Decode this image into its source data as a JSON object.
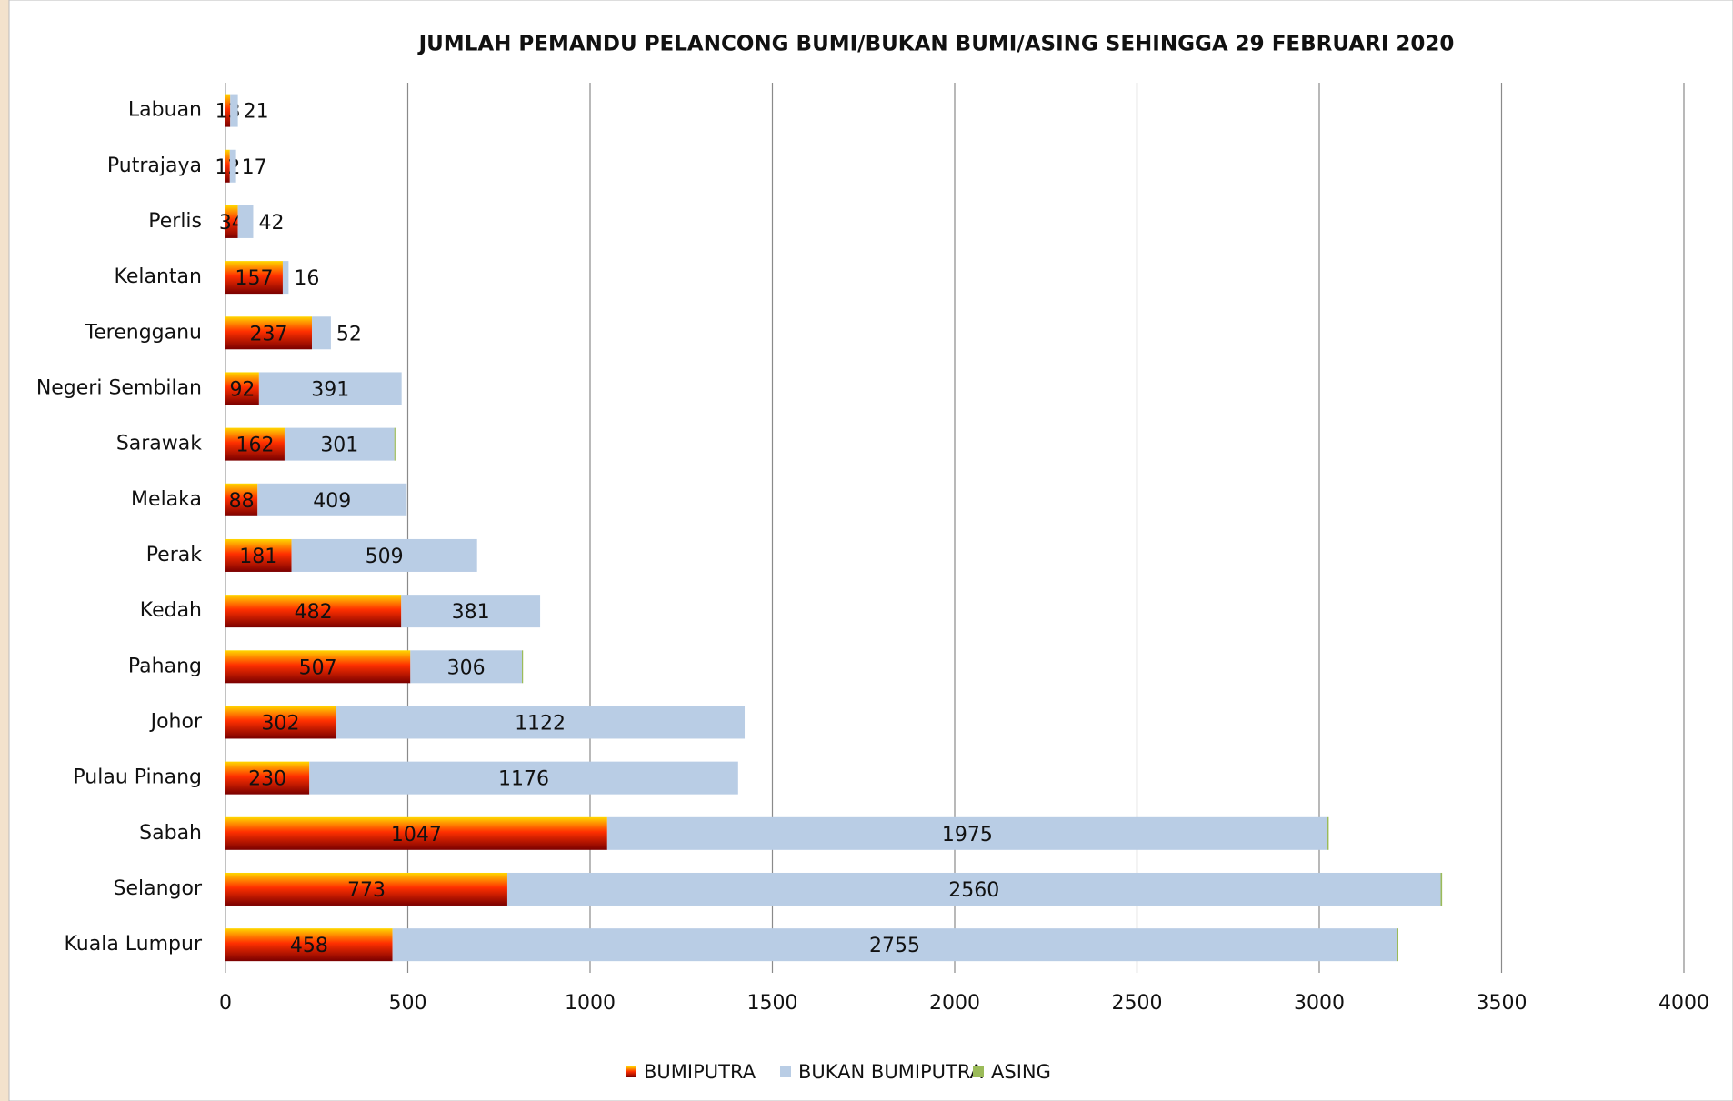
{
  "chart_data": {
    "type": "stacked_barh",
    "title": "JUMLAH PEMANDU PELANCONG BUMI/BUKAN BUMI/ASING SEHINGGA 29 FEBRUARI 2020",
    "categories": [
      "Labuan",
      "Putrajaya",
      "Perlis",
      "Kelantan",
      "Terengganu",
      "Negeri Sembilan",
      "Sarawak",
      "Melaka",
      "Perak",
      "Kedah",
      "Pahang",
      "Johor",
      "Pulau Pinang",
      "Sabah",
      "Selangor",
      "Kuala Lumpur"
    ],
    "series": [
      {
        "name": "BUMIPUTRA",
        "color": "#e00000",
        "values": [
          13,
          12,
          34,
          157,
          237,
          92,
          162,
          88,
          181,
          482,
          507,
          302,
          230,
          1047,
          773,
          458
        ]
      },
      {
        "name": "BUKAN BUMIPUTRA",
        "color": "#b9cde5",
        "values": [
          21,
          17,
          42,
          16,
          52,
          391,
          301,
          409,
          509,
          381,
          306,
          1122,
          1176,
          1975,
          2560,
          2755
        ]
      },
      {
        "name": "ASING",
        "color": "#9bbb59",
        "values": [
          0,
          0,
          0,
          0,
          0,
          0,
          3,
          0,
          0,
          0,
          3,
          0,
          0,
          4,
          4,
          4
        ]
      }
    ],
    "xlim": [
      0,
      4000
    ],
    "xticks": [
      0,
      500,
      1000,
      1500,
      2000,
      2500,
      3000,
      3500,
      4000
    ],
    "grid": true,
    "legend": "bottom"
  }
}
